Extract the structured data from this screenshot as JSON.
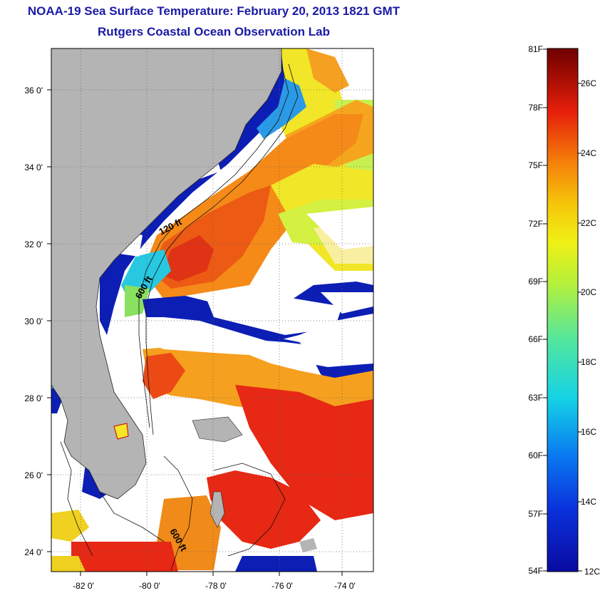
{
  "header": {
    "title": "NOAA-19 Sea Surface Temperature:  February 20, 2013 1821 GMT",
    "subtitle": "Rutgers Coastal Ocean Observation Lab"
  },
  "map": {
    "lat_labels": [
      "36 0'",
      "34 0'",
      "32 0'",
      "30 0'",
      "28 0'",
      "26 0'",
      "24 0'"
    ],
    "lon_labels": [
      "-82 0'",
      "-80 0'",
      "-78 0'",
      "-76 0'",
      "-74 0'"
    ],
    "isobath_labels": [
      "120 ft",
      "600 ft",
      "600 ft"
    ],
    "colors": {
      "land": "#b4b4b4",
      "cloud": "#ffffff",
      "cold": "#0c1eb4",
      "warm": "#e62814"
    }
  },
  "colorbar": {
    "fahrenheit_labels": [
      "81F",
      "78F",
      "75F",
      "72F",
      "69F",
      "66F",
      "63F",
      "60F",
      "57F",
      "54F"
    ],
    "celsius_labels": [
      "26C",
      "24C",
      "22C",
      "20C",
      "18C",
      "16C",
      "14C",
      "12C"
    ],
    "range_f": [
      54,
      81
    ],
    "range_c": [
      12,
      27
    ]
  }
}
